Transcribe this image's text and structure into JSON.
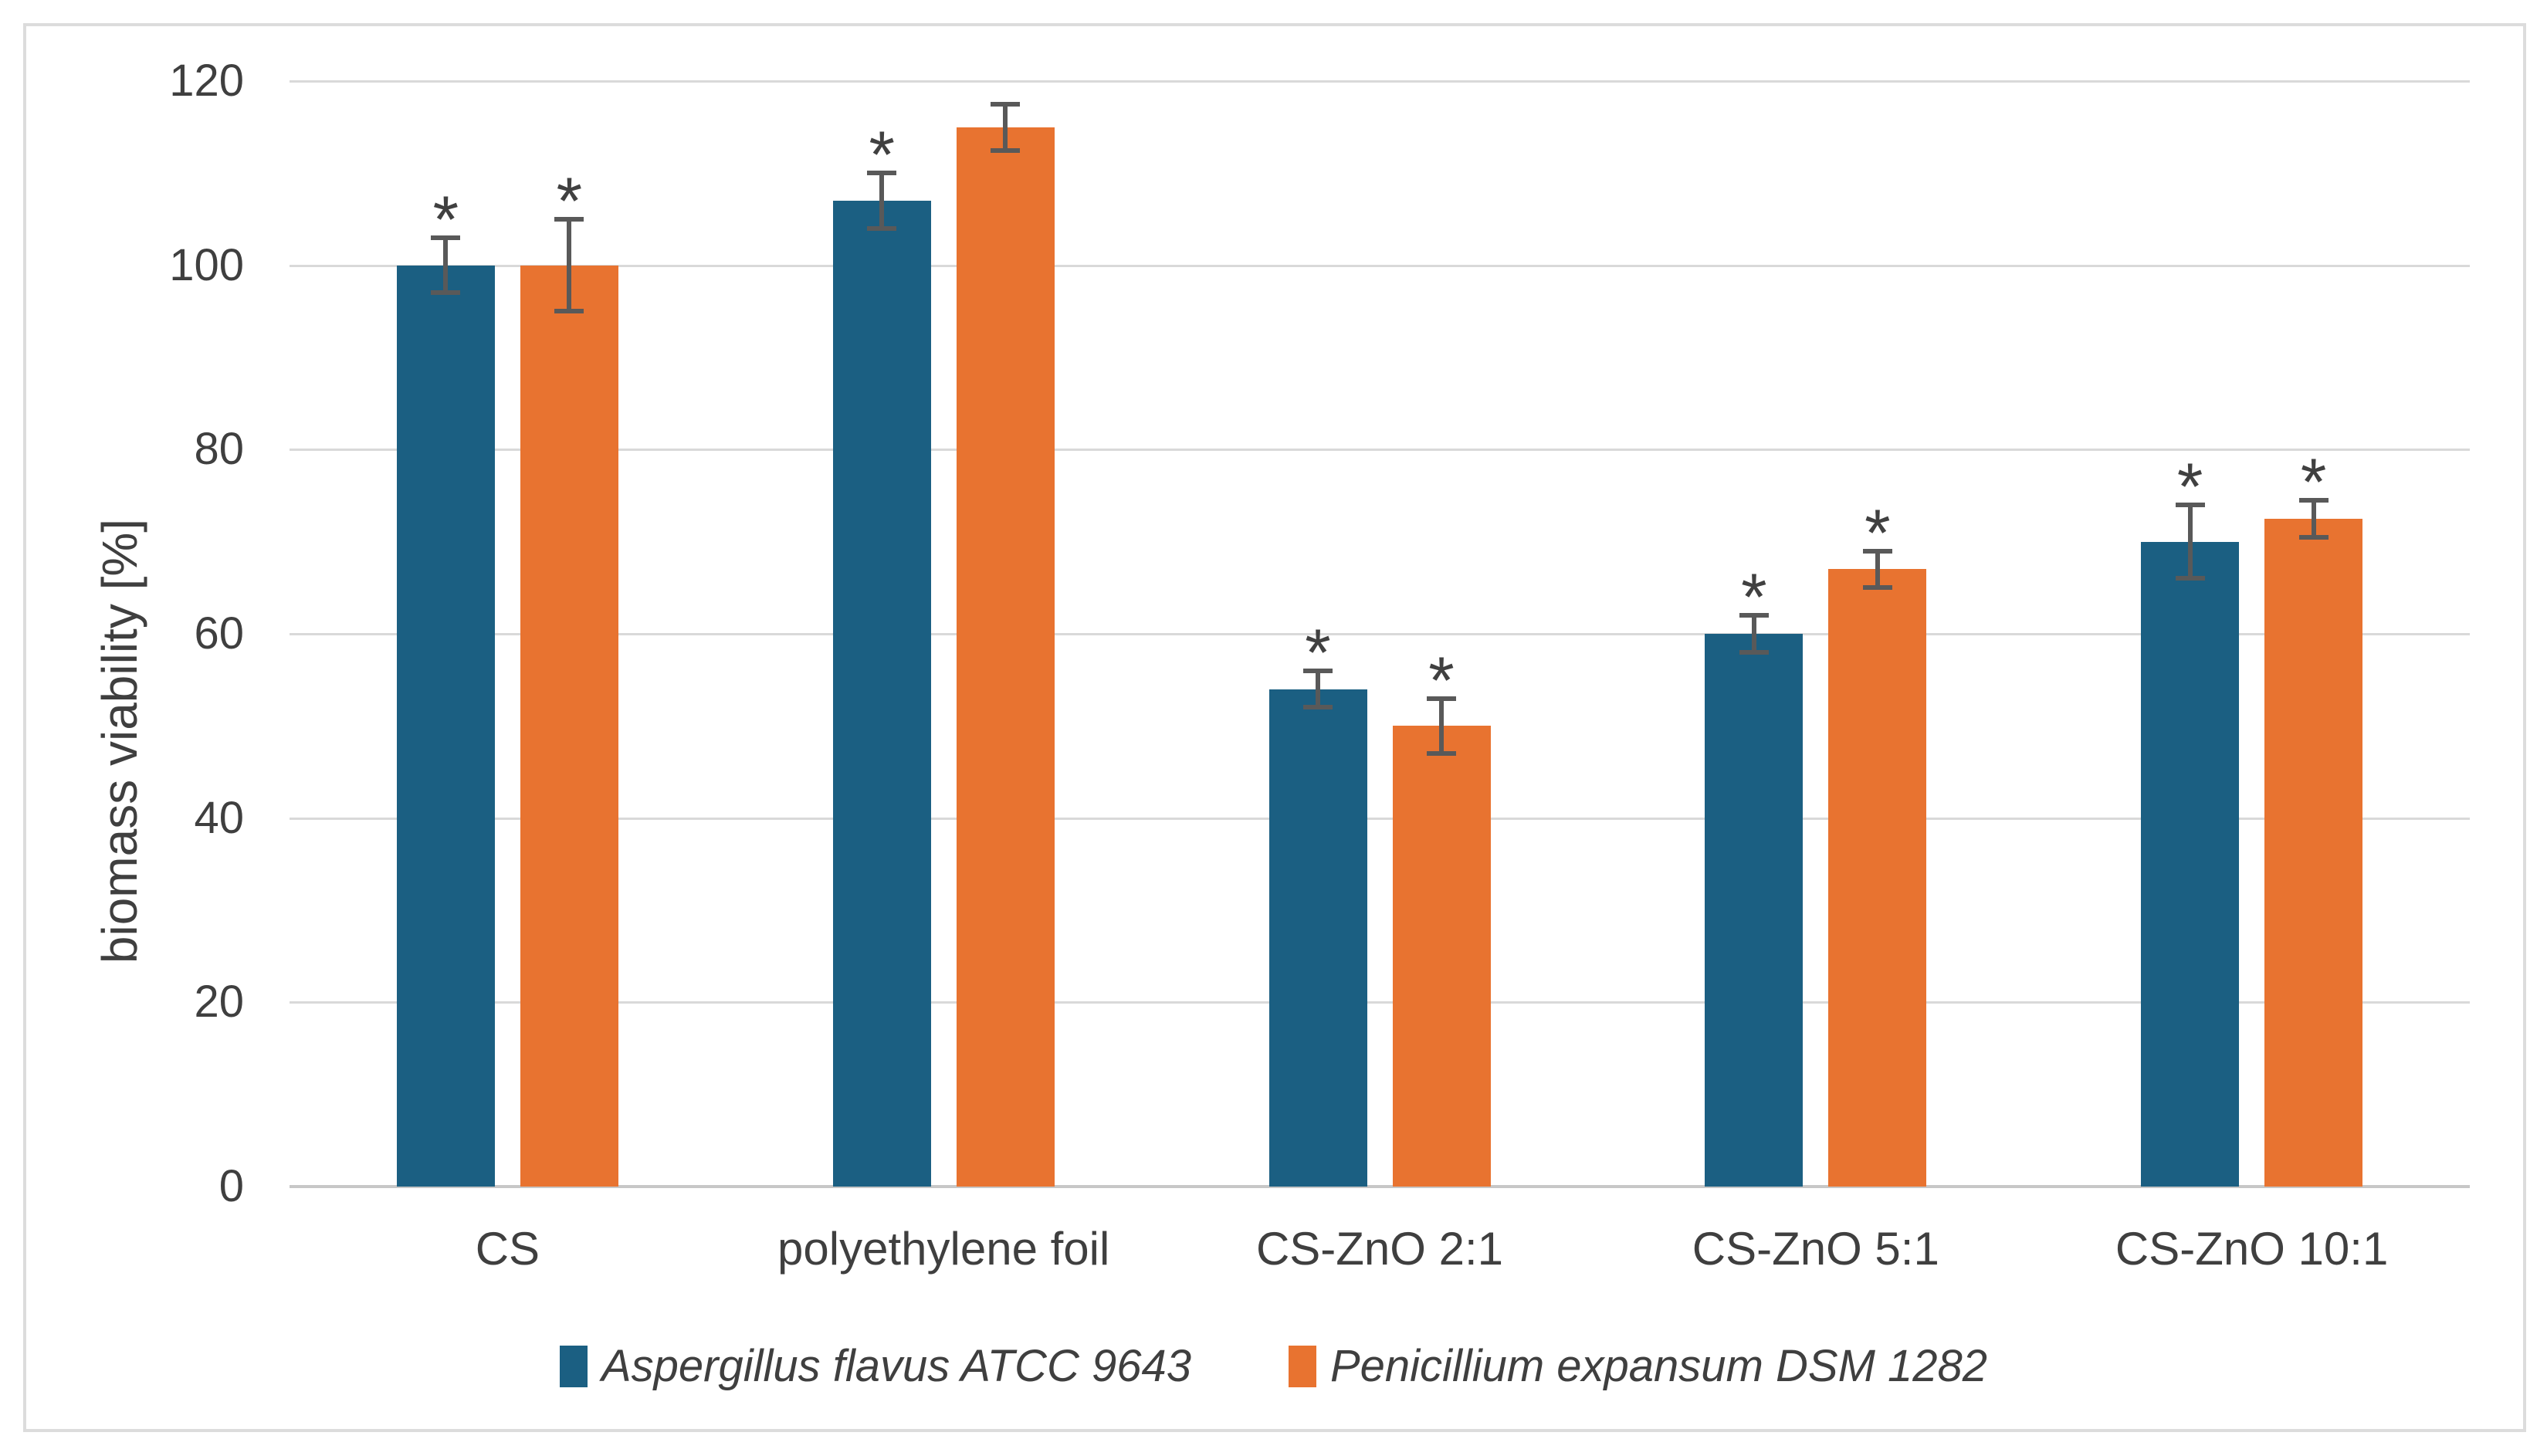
{
  "chart_data": {
    "type": "bar",
    "title": "",
    "xlabel": "",
    "ylabel": "biomass viability [%]",
    "ylim": [
      0,
      120
    ],
    "yticks": [
      0,
      20,
      40,
      60,
      80,
      100,
      120
    ],
    "grid": true,
    "legend_position": "bottom",
    "significance_marker": "*",
    "categories": [
      "CS",
      "polyethylene foil",
      "CS-ZnO 2:1",
      "CS-ZnO 5:1",
      "CS-ZnO 10:1"
    ],
    "series": [
      {
        "name": "Aspergillus flavus ATCC 9643",
        "color": "#1b5f82",
        "values": [
          100,
          107,
          54,
          60,
          70
        ],
        "errors": [
          3,
          3,
          2,
          2,
          4
        ],
        "significant": [
          true,
          true,
          true,
          true,
          true
        ]
      },
      {
        "name": "Penicillium expansum DSM 1282",
        "color": "#e87330",
        "values": [
          100,
          115,
          50,
          67,
          72.5
        ],
        "errors": [
          5,
          2.5,
          3,
          2,
          2
        ],
        "significant": [
          true,
          false,
          true,
          true,
          true
        ]
      }
    ]
  },
  "colors": {
    "gridline": "#d9d9d9",
    "axis_line": "#c7c7c7",
    "error_bar": "#595959",
    "text": "#3f3f3f",
    "border": "#dcdcdc",
    "background": "#ffffff"
  }
}
